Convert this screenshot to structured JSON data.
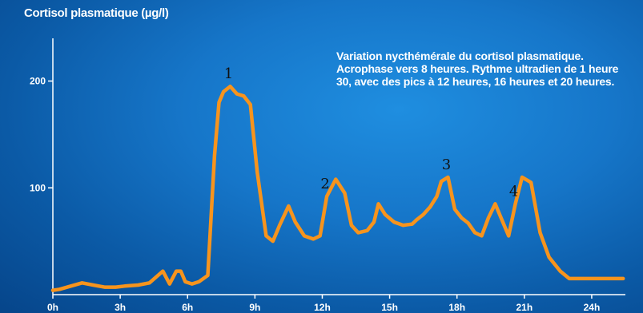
{
  "title": "Cortisol plasmatique (µg/l)",
  "annotation": "Variation nycthémérale du cortisol plasmatique. Acrophase vers 8 heures. Rythme ultradien de 1 heure 30, avec des pics à 12 heures, 16 heures et 20 heures.",
  "colors": {
    "line": "#f7941d",
    "axis": "#ffffff",
    "text": "#ffffff",
    "peak_labels": "#111111"
  },
  "chart_data": {
    "type": "line",
    "title": "Cortisol plasmatique (µg/l)",
    "xlabel": "",
    "ylabel": "Cortisol plasmatique (µg/l)",
    "xlim": [
      0,
      25.5
    ],
    "ylim": [
      0,
      240
    ],
    "x_ticks": [
      0,
      3,
      6,
      9,
      12,
      15,
      18,
      21,
      24
    ],
    "x_tick_labels": [
      "0h",
      "3h",
      "6h",
      "9h",
      "12h",
      "15h",
      "18h",
      "21h",
      "24h"
    ],
    "y_ticks": [
      100,
      200
    ],
    "y_tick_labels": [
      "100",
      "200"
    ],
    "grid": false,
    "series": [
      {
        "x": [
          0,
          0.3,
          0.8,
          1.3,
          1.8,
          2.3,
          2.8,
          3.2,
          3.8,
          4.3,
          4.9,
          5.2,
          5.5,
          5.7,
          5.9,
          6.2,
          6.5,
          6.9,
          7.2,
          7.4,
          7.6,
          7.9,
          8.2,
          8.5,
          8.8,
          9.1,
          9.5,
          9.8,
          10.1,
          10.5,
          10.8,
          11.2,
          11.6,
          11.9,
          12.2,
          12.6,
          13.0,
          13.3,
          13.6,
          14.0,
          14.3,
          14.5,
          14.8,
          15.2,
          15.6,
          16.0,
          16.2,
          16.5,
          16.8,
          17.1,
          17.3,
          17.6,
          17.9,
          18.2,
          18.5,
          18.8,
          19.1,
          19.4,
          19.7,
          20.0,
          20.3,
          20.6,
          20.9,
          21.3,
          21.7,
          22.1,
          22.6,
          23.0,
          23.4,
          23.8,
          24.2,
          24.6,
          25.1,
          25.4
        ],
        "values": [
          4,
          5,
          8,
          11,
          9,
          7,
          7,
          8,
          9,
          11,
          22,
          10,
          22,
          22,
          12,
          10,
          12,
          18,
          130,
          180,
          190,
          195,
          188,
          186,
          178,
          115,
          55,
          50,
          65,
          83,
          68,
          55,
          52,
          55,
          92,
          108,
          95,
          65,
          58,
          60,
          68,
          85,
          75,
          68,
          65,
          66,
          70,
          75,
          82,
          92,
          106,
          110,
          80,
          72,
          67,
          58,
          55,
          72,
          85,
          70,
          55,
          85,
          110,
          105,
          58,
          35,
          22,
          15,
          15,
          15,
          15,
          15,
          15,
          15
        ]
      }
    ],
    "annotations": [
      "1",
      "2",
      "3",
      "4"
    ]
  }
}
